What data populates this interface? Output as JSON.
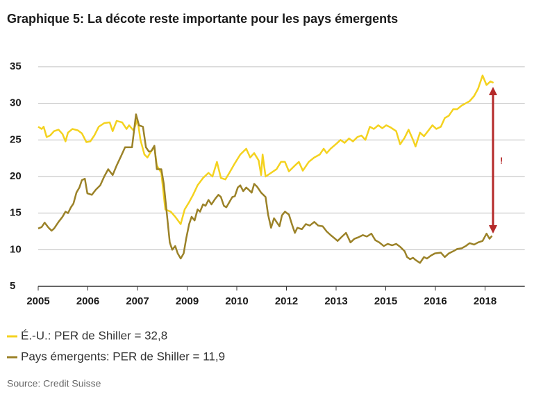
{
  "chart_data": {
    "type": "line",
    "title": "Graphique 5: La décote reste importante pour les pays émergents",
    "source": "Source: Credit Suisse",
    "annotation": "!",
    "xlim": [
      0,
      9.8
    ],
    "xticks": [
      {
        "value": 0,
        "label": "2005"
      },
      {
        "value": 1,
        "label": "2006"
      },
      {
        "value": 2,
        "label": "2007"
      },
      {
        "value": 3,
        "label": "2009"
      },
      {
        "value": 4,
        "label": "2010"
      },
      {
        "value": 5,
        "label": "2012"
      },
      {
        "value": 6,
        "label": "2013"
      },
      {
        "value": 7,
        "label": "2015"
      },
      {
        "value": 8,
        "label": "2016"
      },
      {
        "value": 9,
        "label": "2018"
      }
    ],
    "ylim": [
      5,
      35
    ],
    "yticks": [
      5,
      10,
      15,
      20,
      25,
      30,
      35
    ],
    "grid": true,
    "series": [
      {
        "name": "É.-U.: PER de Shiller = 32,8",
        "color": "#f4d21f",
        "x": [
          0,
          0.07,
          0.11,
          0.17,
          0.24,
          0.32,
          0.41,
          0.49,
          0.55,
          0.6,
          0.69,
          0.8,
          0.88,
          0.97,
          1.05,
          1.13,
          1.22,
          1.33,
          1.44,
          1.5,
          1.58,
          1.69,
          1.78,
          1.83,
          1.92,
          2.0,
          2.06,
          2.14,
          2.2,
          2.28,
          2.34,
          2.39,
          2.48,
          2.56,
          2.67,
          2.76,
          2.87,
          2.95,
          3.04,
          3.12,
          3.21,
          3.32,
          3.43,
          3.51,
          3.6,
          3.68,
          3.77,
          3.85,
          3.96,
          4.07,
          4.19,
          4.27,
          4.35,
          4.44,
          4.49,
          4.52,
          4.58,
          4.69,
          4.8,
          4.89,
          4.97,
          5.05,
          5.17,
          5.25,
          5.33,
          5.45,
          5.56,
          5.67,
          5.75,
          5.81,
          5.89,
          6.01,
          6.09,
          6.17,
          6.26,
          6.34,
          6.43,
          6.51,
          6.59,
          6.68,
          6.76,
          6.85,
          6.93,
          7.01,
          7.1,
          7.21,
          7.29,
          7.38,
          7.46,
          7.55,
          7.6,
          7.69,
          7.77,
          7.85,
          7.94,
          8.02,
          8.11,
          8.19,
          8.27,
          8.36,
          8.44,
          8.53,
          8.61,
          8.69,
          8.78,
          8.86,
          8.95,
          9.03,
          9.11,
          9.17
        ],
        "values": [
          26.8,
          26.5,
          26.8,
          25.4,
          25.6,
          26.2,
          26.4,
          25.8,
          24.8,
          26.0,
          26.5,
          26.3,
          25.9,
          24.7,
          24.8,
          25.6,
          26.8,
          27.3,
          27.4,
          26.2,
          27.6,
          27.4,
          26.5,
          27.0,
          26.3,
          27.8,
          25.0,
          23.0,
          22.6,
          23.5,
          24.0,
          21.5,
          20.5,
          15.5,
          15.2,
          14.5,
          13.5,
          15.5,
          16.5,
          17.5,
          18.8,
          19.8,
          20.5,
          20.0,
          22.0,
          19.8,
          19.6,
          20.5,
          21.8,
          23.0,
          23.8,
          22.6,
          23.2,
          22.2,
          20.2,
          23.0,
          20.0,
          20.5,
          21.0,
          22.0,
          22.0,
          20.7,
          21.5,
          22.0,
          20.8,
          22.0,
          22.6,
          23.0,
          23.8,
          23.2,
          23.8,
          24.5,
          25.0,
          24.6,
          25.2,
          24.8,
          25.4,
          25.6,
          25.0,
          26.8,
          26.5,
          27.0,
          26.6,
          27.0,
          26.7,
          26.2,
          24.4,
          25.3,
          26.4,
          25.0,
          24.1,
          26.0,
          25.5,
          26.2,
          27.0,
          26.5,
          26.8,
          28.0,
          28.3,
          29.2,
          29.2,
          29.7,
          30.0,
          30.3,
          31.0,
          32.0,
          33.8,
          32.5,
          33.0,
          32.8
        ]
      },
      {
        "name": "Pays émergents: PER de Shiller = 11,9",
        "color": "#9b8228",
        "x": [
          0,
          0.07,
          0.13,
          0.21,
          0.27,
          0.32,
          0.41,
          0.49,
          0.55,
          0.6,
          0.66,
          0.71,
          0.77,
          0.83,
          0.88,
          0.94,
          0.99,
          1.08,
          1.16,
          1.25,
          1.33,
          1.41,
          1.5,
          1.58,
          1.67,
          1.75,
          1.83,
          1.89,
          1.97,
          2.03,
          2.11,
          2.17,
          2.23,
          2.28,
          2.34,
          2.39,
          2.48,
          2.53,
          2.59,
          2.65,
          2.7,
          2.76,
          2.81,
          2.87,
          2.93,
          2.98,
          3.04,
          3.09,
          3.15,
          3.21,
          3.26,
          3.32,
          3.37,
          3.43,
          3.49,
          3.57,
          3.63,
          3.68,
          3.74,
          3.79,
          3.85,
          3.91,
          3.96,
          4.02,
          4.07,
          4.13,
          4.19,
          4.24,
          4.3,
          4.35,
          4.41,
          4.49,
          4.58,
          4.63,
          4.69,
          4.75,
          4.8,
          4.86,
          4.91,
          4.97,
          5.05,
          5.11,
          5.17,
          5.22,
          5.31,
          5.39,
          5.47,
          5.56,
          5.64,
          5.73,
          5.81,
          5.89,
          5.98,
          6.03,
          6.12,
          6.2,
          6.29,
          6.37,
          6.45,
          6.54,
          6.62,
          6.71,
          6.79,
          6.87,
          6.96,
          7.04,
          7.13,
          7.21,
          7.29,
          7.38,
          7.43,
          7.49,
          7.55,
          7.6,
          7.69,
          7.77,
          7.83,
          7.91,
          7.99,
          8.11,
          8.19,
          8.27,
          8.36,
          8.44,
          8.53,
          8.61,
          8.69,
          8.78,
          8.86,
          8.95,
          9.03,
          9.09,
          9.14
        ],
        "values": [
          12.9,
          13.1,
          13.7,
          13.0,
          12.6,
          12.9,
          13.8,
          14.5,
          15.2,
          15.0,
          15.8,
          16.3,
          17.8,
          18.5,
          19.5,
          19.7,
          17.7,
          17.5,
          18.2,
          18.8,
          20.0,
          21.0,
          20.2,
          21.5,
          22.8,
          24.0,
          24.0,
          24.0,
          28.5,
          27.0,
          26.8,
          24.0,
          23.4,
          23.5,
          24.2,
          21.0,
          21.0,
          19.0,
          15.0,
          11.0,
          10.0,
          10.5,
          9.5,
          8.8,
          9.5,
          11.5,
          13.5,
          14.5,
          14.0,
          15.5,
          15.2,
          16.2,
          16.0,
          16.8,
          16.2,
          17.0,
          17.5,
          17.2,
          16.0,
          15.8,
          16.5,
          17.2,
          17.3,
          18.5,
          18.8,
          18.0,
          18.5,
          18.2,
          17.8,
          19.0,
          18.6,
          17.8,
          17.2,
          14.8,
          13.0,
          14.3,
          13.8,
          13.2,
          14.7,
          15.2,
          14.8,
          13.5,
          12.3,
          13.0,
          12.8,
          13.5,
          13.3,
          13.8,
          13.3,
          13.2,
          12.5,
          12.0,
          11.5,
          11.2,
          11.8,
          12.3,
          11.0,
          11.5,
          11.7,
          12.0,
          11.8,
          12.2,
          11.3,
          11.0,
          10.5,
          10.8,
          10.6,
          10.8,
          10.4,
          9.8,
          9.0,
          8.7,
          8.9,
          8.6,
          8.2,
          9.0,
          8.8,
          9.2,
          9.5,
          9.6,
          9.0,
          9.5,
          9.8,
          10.1,
          10.2,
          10.5,
          10.9,
          10.7,
          11.0,
          11.2,
          12.2,
          11.5,
          11.9
        ]
      }
    ]
  }
}
